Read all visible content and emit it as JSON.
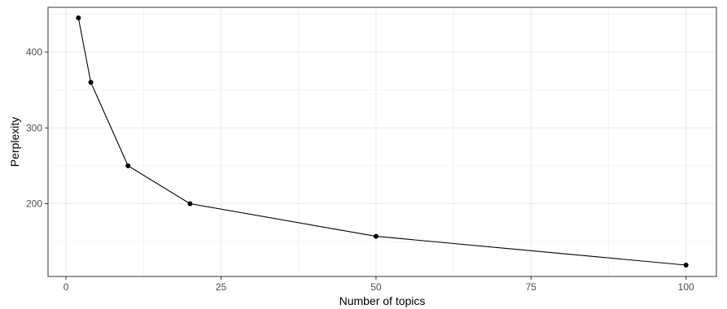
{
  "chart_data": {
    "type": "line",
    "title": "",
    "xlabel": "Number of topics",
    "ylabel": "Perplexity",
    "x": [
      2,
      4,
      10,
      20,
      50,
      100
    ],
    "series": [
      {
        "values": [
          445,
          360,
          250,
          200,
          157,
          119
        ]
      }
    ],
    "xlim": [
      -2.9,
      104.9
    ],
    "ylim": [
      104,
      459
    ],
    "x_ticks": [
      0,
      25,
      50,
      75,
      100
    ],
    "x_tick_labels": [
      "0",
      "25",
      "50",
      "75",
      "100"
    ],
    "y_ticks": [
      200,
      300,
      400
    ],
    "y_tick_labels": [
      "200",
      "300",
      "400"
    ],
    "grid": true,
    "legend": "none",
    "colors": {
      "line": "#000000",
      "points": "#000000",
      "grid": "#ebebeb",
      "panel_border": "#333333"
    }
  }
}
